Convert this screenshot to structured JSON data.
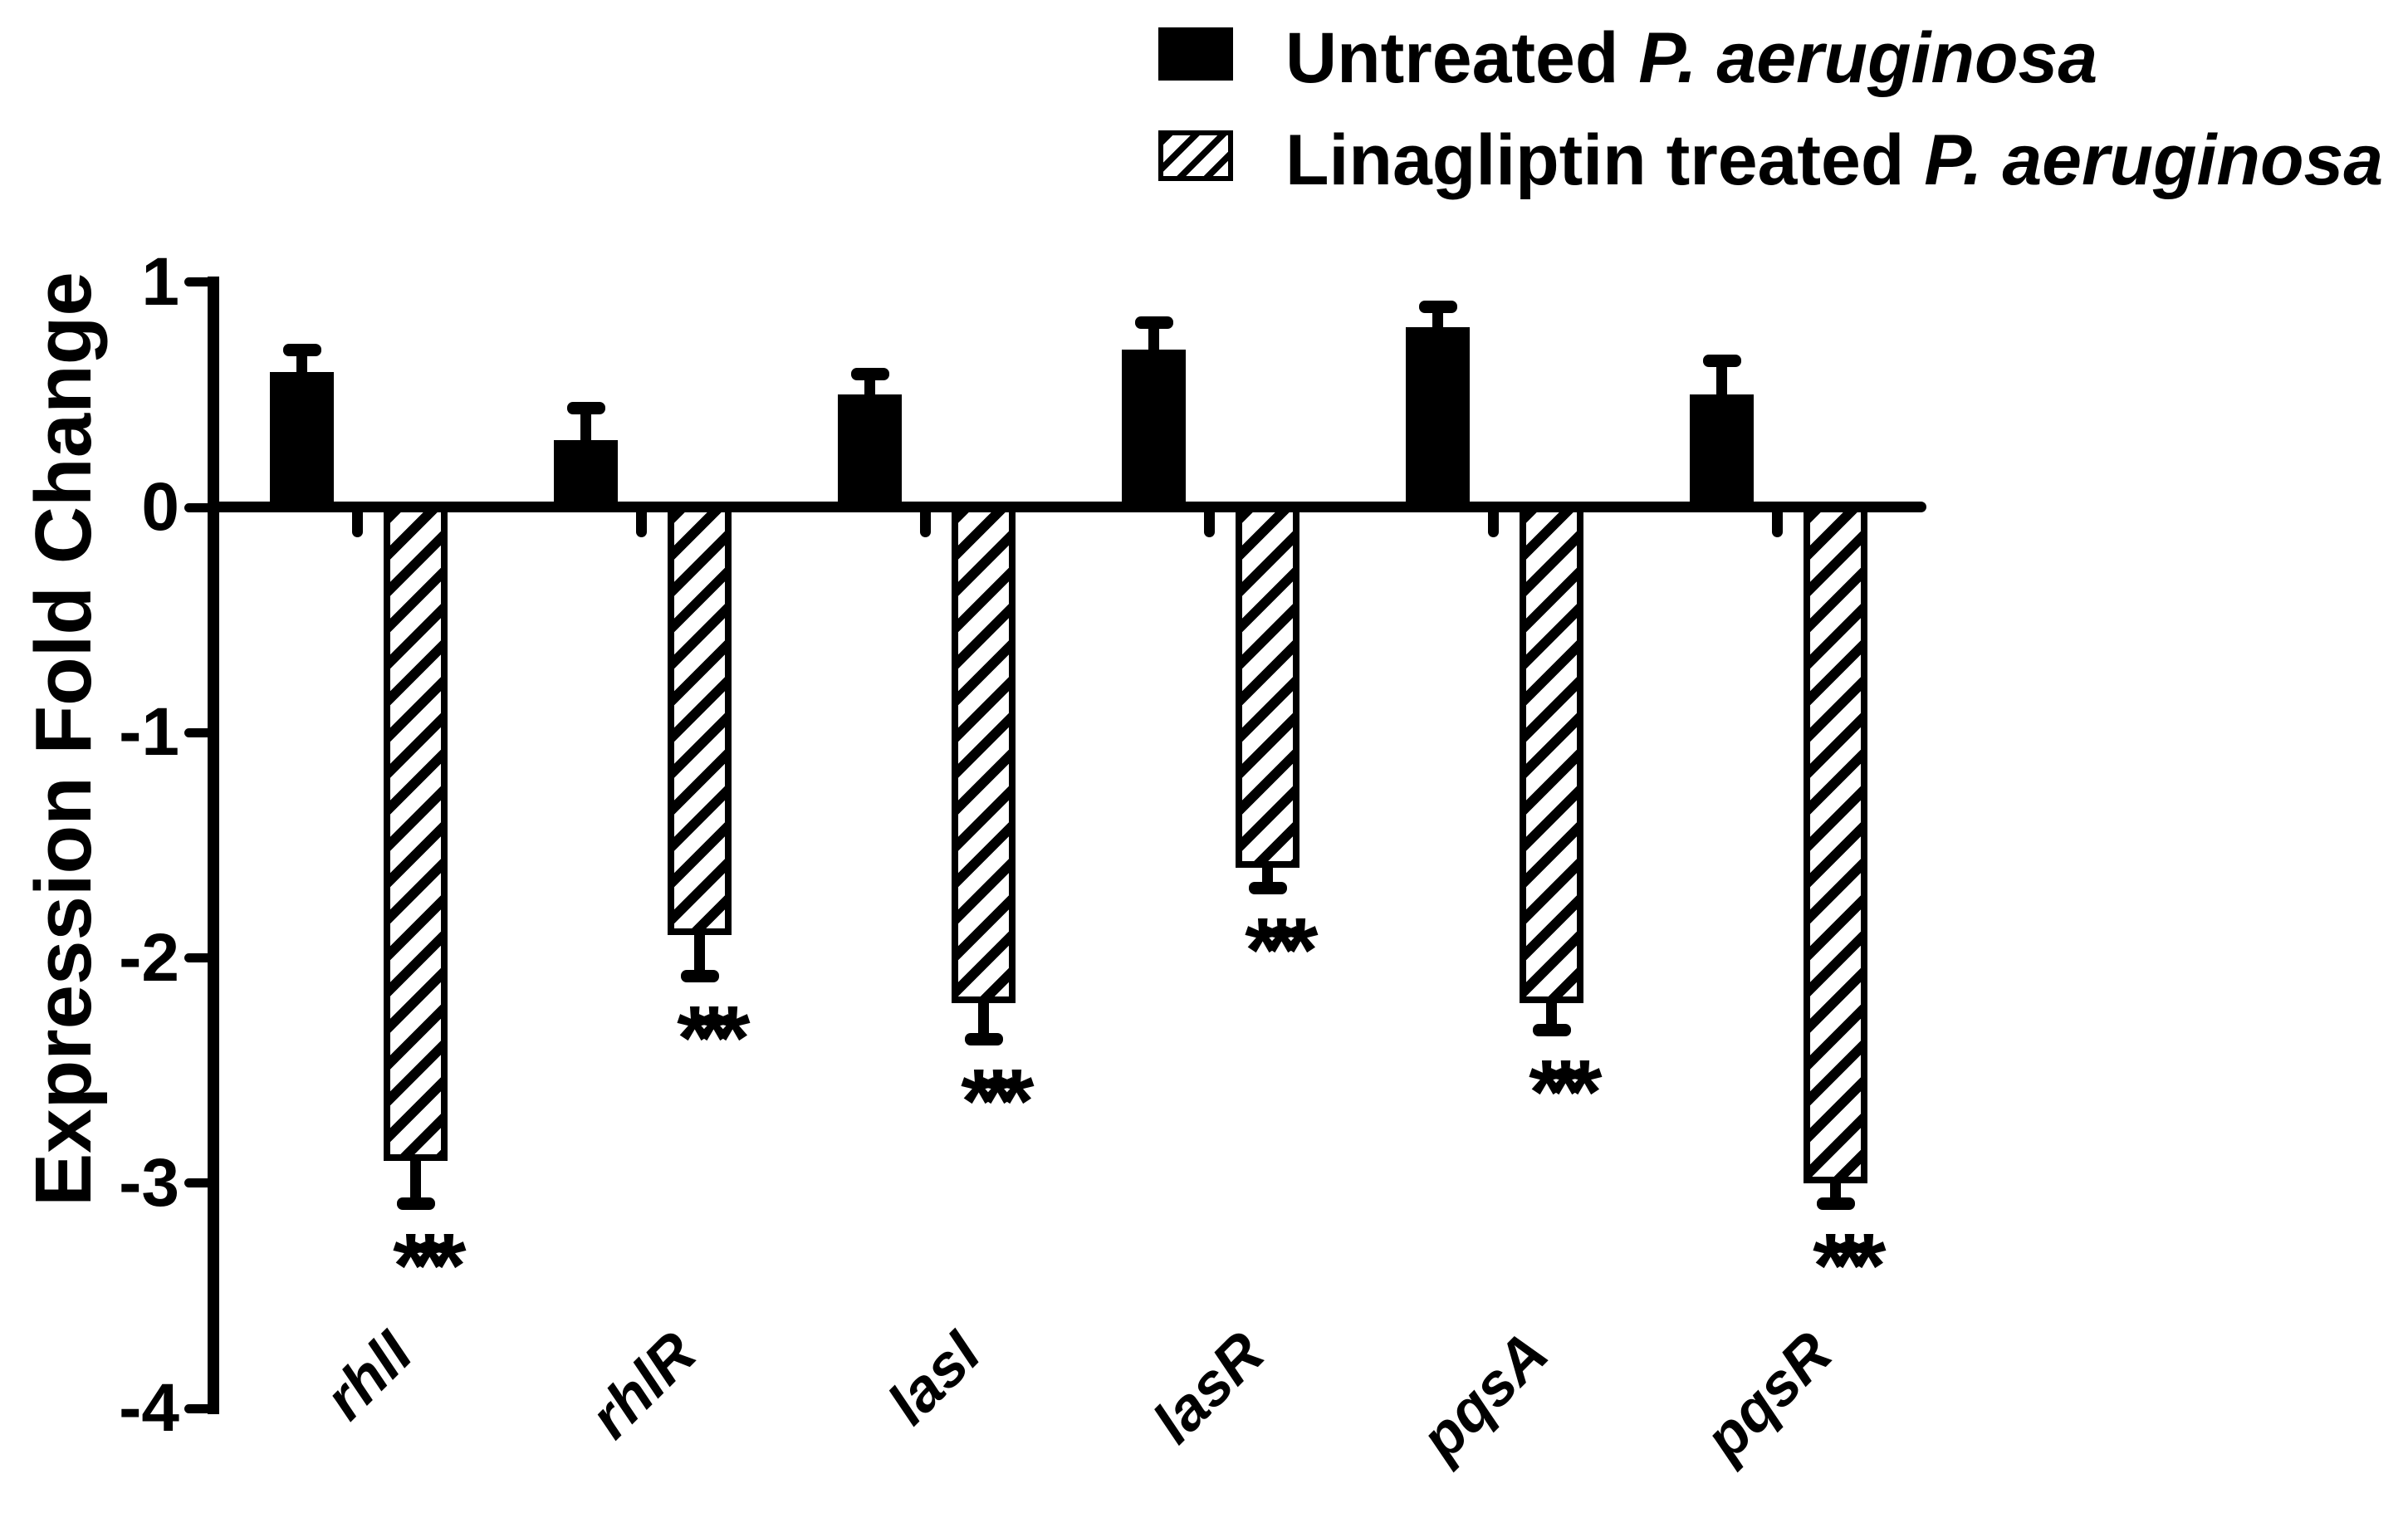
{
  "colors": {
    "ink": "#000000",
    "background": "#ffffff"
  },
  "legend": {
    "items": [
      {
        "swatch": "solid-black-square",
        "label_plain": "Untreated ",
        "label_italic": "P. aeruginosa"
      },
      {
        "swatch": "diagonal-hatch-square",
        "label_plain": "Linagliptin treated ",
        "label_italic": "P. aeruginosa"
      }
    ]
  },
  "chart_data": {
    "type": "bar",
    "title": "",
    "xlabel": "",
    "ylabel": "Expression Fold Change",
    "categories": [
      "rhlI",
      "rhlR",
      "lasI",
      "lasR",
      "pqsA",
      "pqsR"
    ],
    "y_ticks": [
      1,
      0,
      -1,
      -2,
      -3,
      -4
    ],
    "y_tick_labels": [
      "1",
      "0",
      "-1",
      "-2",
      "-3",
      "-4"
    ],
    "ylim": [
      -4,
      1
    ],
    "grid": false,
    "legend_position": "top-right",
    "series": [
      {
        "name": "Untreated P. aeruginosa",
        "fill": "solid",
        "values": [
          0.6,
          0.3,
          0.5,
          0.7,
          0.8,
          0.5
        ],
        "errors": [
          0.1,
          0.14,
          0.09,
          0.12,
          0.09,
          0.15
        ]
      },
      {
        "name": "Linagliptin treated P. aeruginosa",
        "fill": "hatched",
        "values": [
          -2.9,
          -1.9,
          -2.2,
          -1.6,
          -2.2,
          -3.0
        ],
        "errors": [
          0.19,
          0.18,
          0.16,
          0.09,
          0.12,
          0.09
        ]
      }
    ],
    "significance_labels": [
      "***",
      "***",
      "***",
      "***",
      "***",
      "***"
    ]
  }
}
